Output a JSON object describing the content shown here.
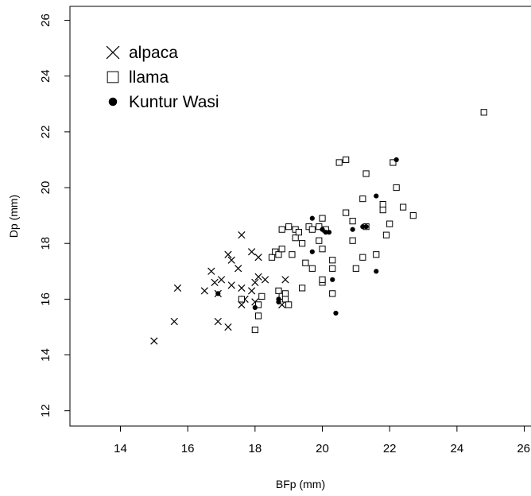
{
  "chart_data": {
    "type": "scatter",
    "title": "",
    "xlabel": "BFp (mm)",
    "ylabel": "Dp (mm)",
    "xlim": [
      12.5,
      26.2
    ],
    "ylim": [
      11.45,
      26.5
    ],
    "x_ticks": [
      14,
      16,
      18,
      20,
      22,
      24,
      26
    ],
    "x_tick_labels": [
      "14",
      "16",
      "18",
      "20",
      "22",
      "24",
      "26"
    ],
    "y_ticks": [
      12,
      14,
      16,
      18,
      20,
      22,
      24,
      26
    ],
    "y_tick_labels": [
      "12",
      "14",
      "16",
      "18",
      "20",
      "22",
      "24",
      "26"
    ],
    "grid": false,
    "legend_position": "top-left",
    "series": [
      {
        "name": "alpaca",
        "marker": "cross",
        "points": [
          [
            15.0,
            14.5
          ],
          [
            15.6,
            15.2
          ],
          [
            15.7,
            16.4
          ],
          [
            16.5,
            16.3
          ],
          [
            16.7,
            17.0
          ],
          [
            16.8,
            16.6
          ],
          [
            16.9,
            16.2
          ],
          [
            16.9,
            15.2
          ],
          [
            17.0,
            16.7
          ],
          [
            17.2,
            17.6
          ],
          [
            17.2,
            15.0
          ],
          [
            17.3,
            17.4
          ],
          [
            17.3,
            16.5
          ],
          [
            17.5,
            17.1
          ],
          [
            17.6,
            18.3
          ],
          [
            17.6,
            16.4
          ],
          [
            17.6,
            15.8
          ],
          [
            17.7,
            16.0
          ],
          [
            17.9,
            17.7
          ],
          [
            17.9,
            16.3
          ],
          [
            18.0,
            16.6
          ],
          [
            18.0,
            15.9
          ],
          [
            18.1,
            17.5
          ],
          [
            18.1,
            16.8
          ],
          [
            18.3,
            16.7
          ],
          [
            18.9,
            16.7
          ],
          [
            18.8,
            15.8
          ]
        ]
      },
      {
        "name": "llama",
        "marker": "square",
        "points": [
          [
            17.6,
            16.0
          ],
          [
            18.0,
            14.9
          ],
          [
            18.1,
            15.4
          ],
          [
            18.1,
            15.8
          ],
          [
            18.2,
            16.1
          ],
          [
            18.5,
            17.5
          ],
          [
            18.6,
            17.7
          ],
          [
            18.7,
            17.6
          ],
          [
            18.7,
            16.3
          ],
          [
            18.8,
            16.1
          ],
          [
            18.8,
            18.5
          ],
          [
            18.8,
            17.8
          ],
          [
            18.9,
            16.2
          ],
          [
            18.9,
            16.0
          ],
          [
            19.0,
            18.6
          ],
          [
            19.0,
            15.8
          ],
          [
            19.1,
            17.6
          ],
          [
            19.2,
            18.5
          ],
          [
            19.2,
            18.2
          ],
          [
            19.3,
            18.4
          ],
          [
            19.4,
            16.4
          ],
          [
            19.4,
            18.0
          ],
          [
            19.5,
            17.3
          ],
          [
            19.6,
            18.6
          ],
          [
            19.7,
            18.5
          ],
          [
            19.7,
            17.1
          ],
          [
            19.9,
            18.6
          ],
          [
            19.9,
            18.1
          ],
          [
            20.0,
            18.9
          ],
          [
            20.0,
            17.8
          ],
          [
            20.0,
            16.6
          ],
          [
            20.0,
            16.7
          ],
          [
            20.1,
            18.5
          ],
          [
            20.3,
            17.4
          ],
          [
            20.3,
            17.1
          ],
          [
            20.3,
            16.2
          ],
          [
            20.5,
            20.9
          ],
          [
            20.7,
            21.0
          ],
          [
            20.7,
            19.1
          ],
          [
            20.9,
            18.8
          ],
          [
            20.9,
            18.1
          ],
          [
            21.0,
            17.1
          ],
          [
            21.2,
            19.6
          ],
          [
            21.2,
            17.5
          ],
          [
            21.3,
            20.5
          ],
          [
            21.3,
            18.6
          ],
          [
            21.6,
            17.6
          ],
          [
            21.8,
            19.4
          ],
          [
            21.8,
            19.2
          ],
          [
            21.9,
            18.3
          ],
          [
            22.0,
            18.7
          ],
          [
            22.1,
            20.9
          ],
          [
            22.2,
            20.0
          ],
          [
            22.4,
            19.3
          ],
          [
            22.7,
            19.0
          ],
          [
            24.8,
            22.7
          ]
        ]
      },
      {
        "name": "Kuntur Wasi",
        "marker": "filled-circle",
        "points": [
          [
            16.9,
            16.2
          ],
          [
            18.0,
            15.7
          ],
          [
            18.7,
            16.0
          ],
          [
            18.7,
            15.9
          ],
          [
            19.7,
            18.9
          ],
          [
            19.7,
            17.7
          ],
          [
            20.0,
            18.5
          ],
          [
            20.1,
            18.4
          ],
          [
            20.2,
            18.4
          ],
          [
            20.3,
            16.7
          ],
          [
            20.4,
            15.5
          ],
          [
            20.9,
            18.5
          ],
          [
            21.3,
            18.6
          ],
          [
            21.2,
            18.6
          ],
          [
            21.6,
            19.7
          ],
          [
            21.6,
            17.0
          ],
          [
            22.2,
            21.0
          ]
        ]
      }
    ]
  }
}
